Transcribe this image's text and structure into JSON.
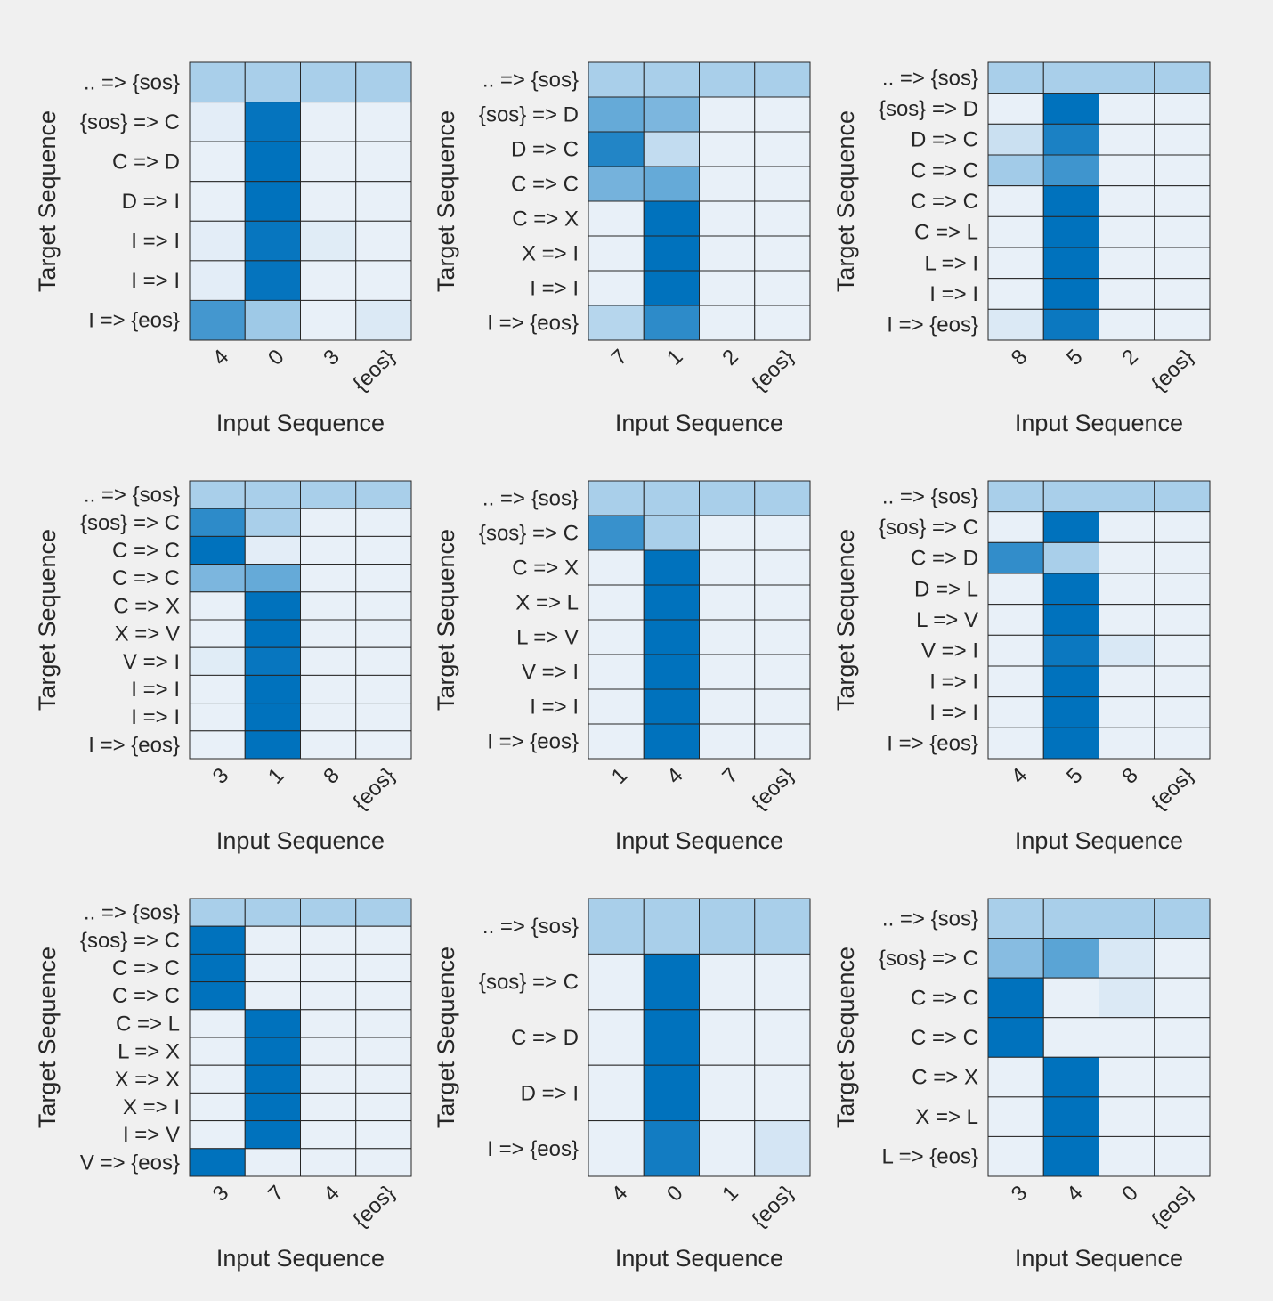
{
  "figure": {
    "background": "#f0f0f0",
    "cell_border_color": "#262626",
    "colormap": {
      "low": "#e8f0f8",
      "mid": "#a9cfea",
      "high": "#0072bd"
    }
  },
  "chart_data": [
    {
      "type": "heatmap",
      "xlabel": "Input Sequence",
      "ylabel": "Target Sequence",
      "x_labels": [
        "4",
        "0",
        "3",
        "{eos}"
      ],
      "y_labels": [
        ".. => {sos}",
        "{sos} => C",
        "C => D",
        "D => I",
        "I => I",
        "I => I",
        "I => {eos}"
      ],
      "values": [
        [
          0.25,
          0.25,
          0.25,
          0.25
        ],
        [
          0.02,
          0.98,
          0.0,
          0.0
        ],
        [
          0.0,
          1.0,
          0.0,
          0.0
        ],
        [
          0.0,
          1.0,
          0.0,
          0.0
        ],
        [
          0.02,
          0.97,
          0.03,
          0.0
        ],
        [
          0.02,
          0.98,
          0.0,
          0.0
        ],
        [
          0.7,
          0.3,
          0.0,
          0.05
        ]
      ]
    },
    {
      "type": "heatmap",
      "xlabel": "Input Sequence",
      "ylabel": "Target Sequence",
      "x_labels": [
        "7",
        "1",
        "2",
        "{eos}"
      ],
      "y_labels": [
        ".. => {sos}",
        "{sos} => D",
        "D => C",
        "C => C",
        "C => X",
        "X => I",
        "I => I",
        "I => {eos}"
      ],
      "values": [
        [
          0.25,
          0.25,
          0.25,
          0.25
        ],
        [
          0.55,
          0.45,
          0.0,
          0.0
        ],
        [
          0.85,
          0.15,
          0.0,
          0.0
        ],
        [
          0.48,
          0.55,
          0.0,
          0.0
        ],
        [
          0.0,
          1.0,
          0.0,
          0.0
        ],
        [
          0.0,
          1.0,
          0.0,
          0.0
        ],
        [
          0.0,
          1.0,
          0.0,
          0.0
        ],
        [
          0.2,
          0.8,
          0.0,
          0.0
        ]
      ]
    },
    {
      "type": "heatmap",
      "xlabel": "Input Sequence",
      "ylabel": "Target Sequence",
      "x_labels": [
        "8",
        "5",
        "2",
        "{eos}"
      ],
      "y_labels": [
        ".. => {sos}",
        "{sos} => D",
        "D => C",
        "C => C",
        "C => C",
        "C => L",
        "L => I",
        "I => I",
        "I => {eos}"
      ],
      "values": [
        [
          0.25,
          0.25,
          0.25,
          0.25
        ],
        [
          0.0,
          1.0,
          0.0,
          0.0
        ],
        [
          0.12,
          0.88,
          0.0,
          0.0
        ],
        [
          0.28,
          0.72,
          0.0,
          0.0
        ],
        [
          0.0,
          1.0,
          0.0,
          0.0
        ],
        [
          0.0,
          1.0,
          0.0,
          0.0
        ],
        [
          0.0,
          1.0,
          0.0,
          0.0
        ],
        [
          0.0,
          1.0,
          0.0,
          0.0
        ],
        [
          0.05,
          0.95,
          0.0,
          0.0
        ]
      ]
    },
    {
      "type": "heatmap",
      "xlabel": "Input Sequence",
      "ylabel": "Target Sequence",
      "x_labels": [
        "3",
        "1",
        "8",
        "{eos}"
      ],
      "y_labels": [
        ".. => {sos}",
        "{sos} => C",
        "C => C",
        "C => C",
        "C => X",
        "X => V",
        "V => I",
        "I => I",
        "I => I",
        "I => {eos}"
      ],
      "values": [
        [
          0.25,
          0.25,
          0.25,
          0.25
        ],
        [
          0.8,
          0.25,
          0.0,
          0.0
        ],
        [
          1.0,
          0.02,
          0.0,
          0.0
        ],
        [
          0.45,
          0.55,
          0.0,
          0.0
        ],
        [
          0.0,
          1.0,
          0.0,
          0.0
        ],
        [
          0.0,
          1.0,
          0.0,
          0.0
        ],
        [
          0.03,
          0.97,
          0.0,
          0.0
        ],
        [
          0.0,
          1.0,
          0.0,
          0.0
        ],
        [
          0.0,
          1.0,
          0.0,
          0.0
        ],
        [
          0.0,
          1.0,
          0.0,
          0.0
        ]
      ]
    },
    {
      "type": "heatmap",
      "xlabel": "Input Sequence",
      "ylabel": "Target Sequence",
      "x_labels": [
        "1",
        "4",
        "7",
        "{eos}"
      ],
      "y_labels": [
        ".. => {sos}",
        "{sos} => C",
        "C => X",
        "X => L",
        "L => V",
        "V => I",
        "I => I",
        "I => {eos}"
      ],
      "values": [
        [
          0.25,
          0.25,
          0.25,
          0.25
        ],
        [
          0.75,
          0.25,
          0.0,
          0.0
        ],
        [
          0.0,
          1.0,
          0.0,
          0.0
        ],
        [
          0.0,
          1.0,
          0.0,
          0.0
        ],
        [
          0.0,
          1.0,
          0.0,
          0.0
        ],
        [
          0.0,
          1.0,
          0.0,
          0.0
        ],
        [
          0.0,
          1.0,
          0.0,
          0.0
        ],
        [
          0.0,
          1.0,
          0.0,
          0.0
        ]
      ]
    },
    {
      "type": "heatmap",
      "xlabel": "Input Sequence",
      "ylabel": "Target Sequence",
      "x_labels": [
        "4",
        "5",
        "8",
        "{eos}"
      ],
      "y_labels": [
        ".. => {sos}",
        "{sos} => C",
        "C => D",
        "D => L",
        "L => V",
        "V => I",
        "I => I",
        "I => I",
        "I => {eos}"
      ],
      "values": [
        [
          0.25,
          0.25,
          0.25,
          0.25
        ],
        [
          0.0,
          1.0,
          0.0,
          0.0
        ],
        [
          0.78,
          0.25,
          0.0,
          0.0
        ],
        [
          0.0,
          1.0,
          0.0,
          0.0
        ],
        [
          0.0,
          1.0,
          0.0,
          0.0
        ],
        [
          0.0,
          0.95,
          0.06,
          0.0
        ],
        [
          0.0,
          1.0,
          0.0,
          0.0
        ],
        [
          0.0,
          1.0,
          0.0,
          0.0
        ],
        [
          0.0,
          1.0,
          0.0,
          0.0
        ]
      ]
    },
    {
      "type": "heatmap",
      "xlabel": "Input Sequence",
      "ylabel": "Target Sequence",
      "x_labels": [
        "3",
        "7",
        "4",
        "{eos}"
      ],
      "y_labels": [
        ".. => {sos}",
        "{sos} => C",
        "C => C",
        "C => C",
        "C => L",
        "L => X",
        "X => X",
        "X => I",
        "I => V",
        "V => {eos}"
      ],
      "values": [
        [
          0.25,
          0.25,
          0.25,
          0.25
        ],
        [
          1.0,
          0.0,
          0.0,
          0.0
        ],
        [
          1.0,
          0.0,
          0.0,
          0.0
        ],
        [
          1.0,
          0.0,
          0.0,
          0.0
        ],
        [
          0.0,
          1.0,
          0.0,
          0.0
        ],
        [
          0.0,
          1.0,
          0.0,
          0.0
        ],
        [
          0.0,
          1.0,
          0.0,
          0.0
        ],
        [
          0.0,
          1.0,
          0.0,
          0.0
        ],
        [
          0.0,
          1.0,
          0.0,
          0.0
        ],
        [
          1.0,
          0.0,
          0.0,
          0.0
        ]
      ]
    },
    {
      "type": "heatmap",
      "xlabel": "Input Sequence",
      "ylabel": "Target Sequence",
      "x_labels": [
        "4",
        "0",
        "1",
        "{eos}"
      ],
      "y_labels": [
        ".. => {sos}",
        "{sos} => C",
        "C => D",
        "D => I",
        "I => {eos}"
      ],
      "values": [
        [
          0.25,
          0.25,
          0.25,
          0.25
        ],
        [
          0.0,
          1.0,
          0.0,
          0.0
        ],
        [
          0.0,
          1.0,
          0.0,
          0.0
        ],
        [
          0.0,
          1.0,
          0.0,
          0.0
        ],
        [
          0.0,
          0.92,
          0.0,
          0.08
        ]
      ]
    },
    {
      "type": "heatmap",
      "xlabel": "Input Sequence",
      "ylabel": "Target Sequence",
      "x_labels": [
        "3",
        "4",
        "0",
        "{eos}"
      ],
      "y_labels": [
        ".. => {sos}",
        "{sos} => C",
        "C => C",
        "C => C",
        "C => X",
        "X => L",
        "L => {eos}"
      ],
      "values": [
        [
          0.25,
          0.25,
          0.25,
          0.25
        ],
        [
          0.4,
          0.6,
          0.06,
          0.0
        ],
        [
          1.0,
          0.0,
          0.05,
          0.0
        ],
        [
          1.0,
          0.0,
          0.0,
          0.0
        ],
        [
          0.0,
          1.0,
          0.0,
          0.0
        ],
        [
          0.0,
          1.0,
          0.0,
          0.0
        ],
        [
          0.0,
          1.0,
          0.0,
          0.0
        ]
      ]
    }
  ]
}
